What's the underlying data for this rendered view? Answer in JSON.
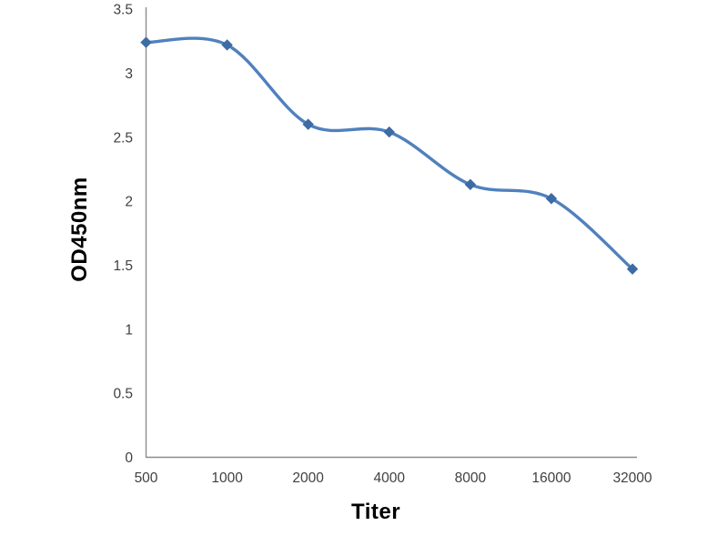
{
  "chart_data": {
    "type": "line",
    "title": "",
    "xlabel": "Titer",
    "ylabel": "OD450nm",
    "categories": [
      "500",
      "1000",
      "2000",
      "4000",
      "8000",
      "16000",
      "32000"
    ],
    "series": [
      {
        "name": "OD450nm",
        "values": [
          3.24,
          3.22,
          2.6,
          2.54,
          2.13,
          2.02,
          1.47
        ]
      }
    ],
    "ylim": [
      0,
      3.5
    ],
    "ytick_step": 0.5,
    "ytick_labels": [
      "0",
      "0.5",
      "1",
      "1.5",
      "2",
      "2.5",
      "3",
      "3.5"
    ],
    "grid": false,
    "legend_position": "none",
    "smooth_line": true,
    "marker_shape": "diamond",
    "colors": {
      "line": "#4F81BD",
      "marker": "#3D6CA5",
      "axis": "#8C8C8C",
      "tick_label": "#404040",
      "axis_title": "#000000",
      "background": "#FFFFFF"
    }
  }
}
